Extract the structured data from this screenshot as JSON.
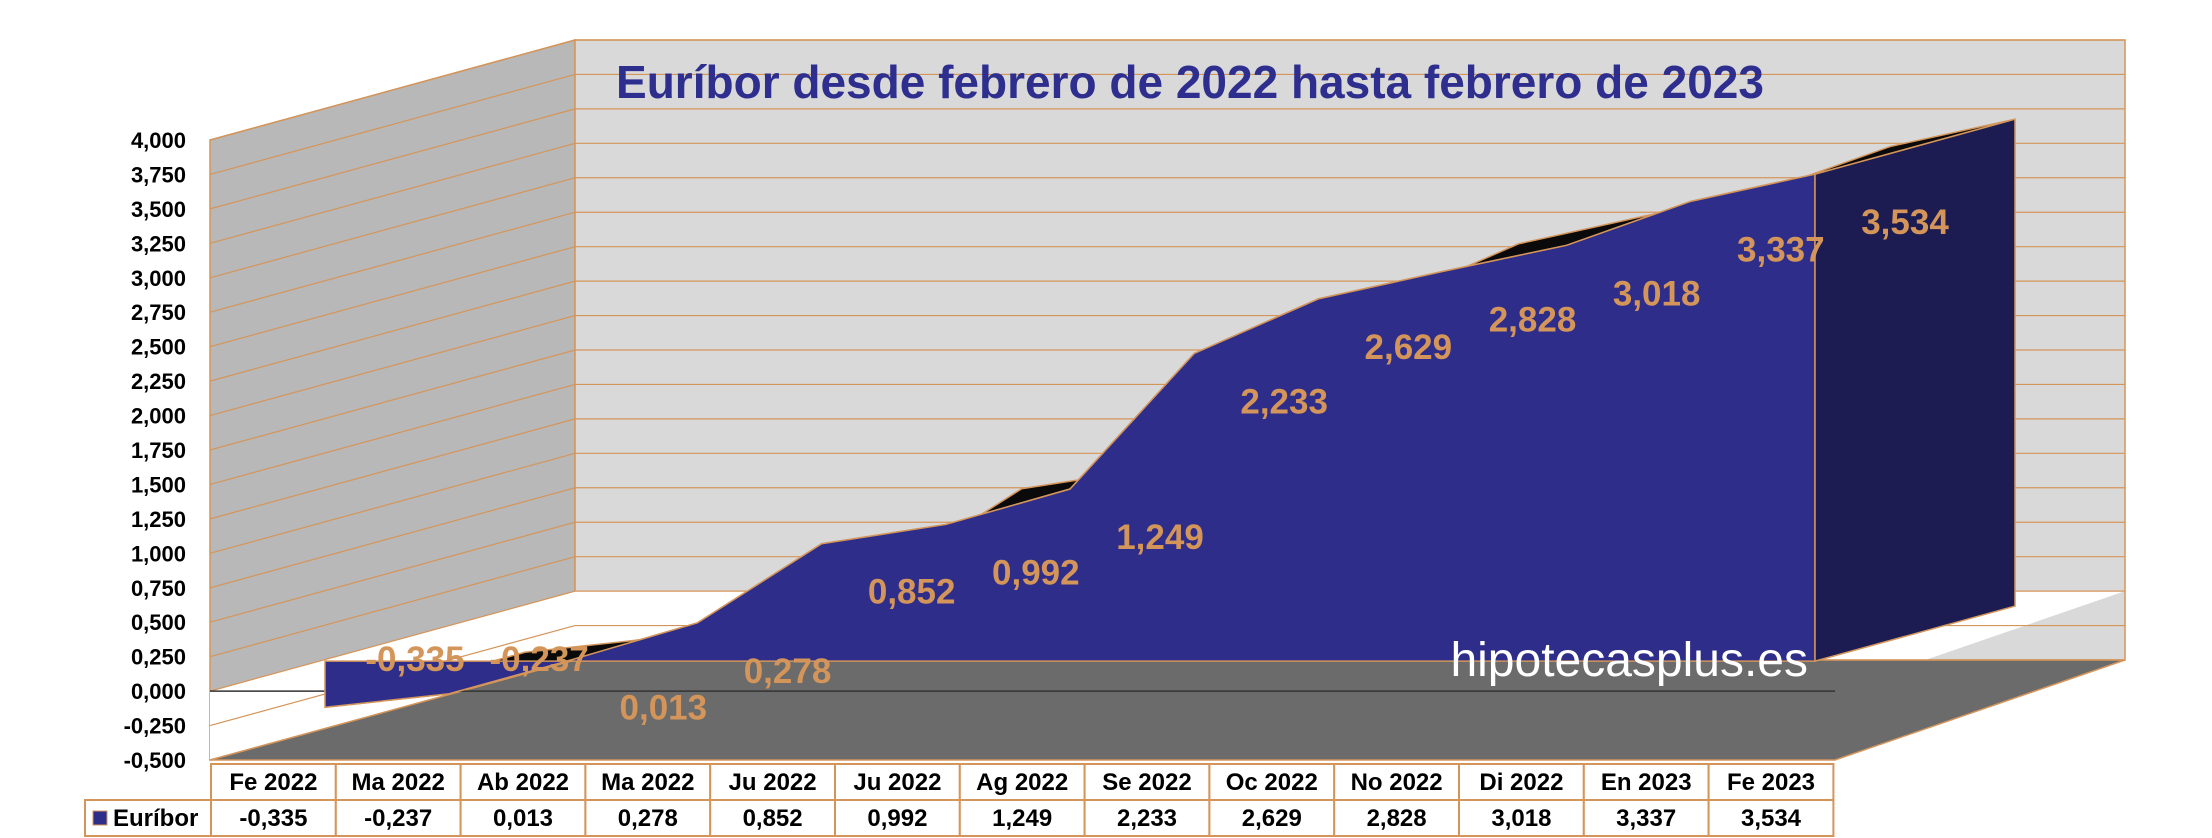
{
  "chart_data": {
    "type": "area",
    "title": "Euríbor desde febrero de 2022 hasta febrero de 2023",
    "categories": [
      "Fe 2022",
      "Ma 2022",
      "Ab 2022",
      "Ma 2022",
      "Ju 2022",
      "Ju 2022",
      "Ag 2022",
      "Se 2022",
      "Oc 2022",
      "No 2022",
      "Di 2022",
      "En 2023",
      "Fe 2023"
    ],
    "series": [
      {
        "name": "Euríbor",
        "values": [
          -0.335,
          -0.237,
          0.013,
          0.278,
          0.852,
          0.992,
          1.249,
          2.233,
          2.629,
          2.828,
          3.018,
          3.337,
          3.534
        ],
        "labels": [
          "-0,335",
          "-0,237",
          "0,013",
          "0,278",
          "0,852",
          "0,992",
          "1,249",
          "2,233",
          "2,629",
          "2,828",
          "3,018",
          "3,337",
          "3,534"
        ]
      }
    ],
    "ylim": [
      -0.5,
      4.0
    ],
    "y_ticks": [
      "4,000",
      "3,750",
      "3,500",
      "3,250",
      "3,000",
      "2,750",
      "2,500",
      "2,250",
      "2,000",
      "1,750",
      "1,500",
      "1,250",
      "1,000",
      "0,750",
      "0,500",
      "0,250",
      "0,000",
      "-0,250",
      "-0,500"
    ],
    "grid": true,
    "legend": "data table",
    "watermark": "hipotecasplus.es",
    "colors": {
      "area": "#2e2e8a",
      "area_side": "#1c1c52",
      "area_top": "#0a0a0a",
      "wall": "#d9d9d9",
      "side_wall": "#b8b8b8",
      "floor": "#6b6b6b",
      "gridline": "#d4955a",
      "labels": "#d4955a",
      "title": "#2e2e8f",
      "table_border": "#d4955a"
    }
  }
}
